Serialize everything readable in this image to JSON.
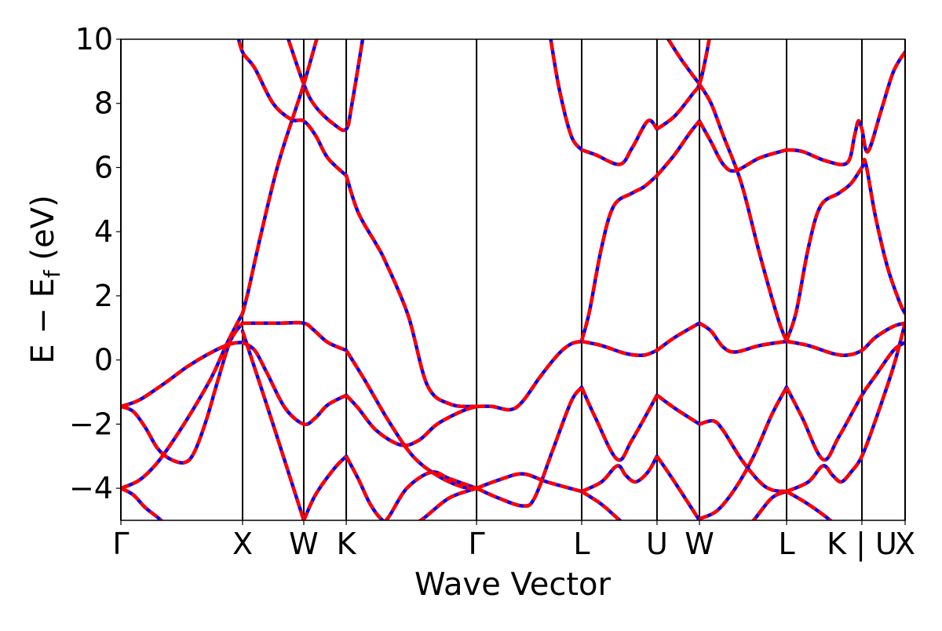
{
  "chart_data": {
    "type": "line",
    "title": "",
    "xlabel": "Wave Vector",
    "ylabel_main": "E − E",
    "ylabel_sub": "f",
    "ylabel_unit": " (eV)",
    "ylim": [
      -5,
      10
    ],
    "xlim": [
      0,
      6.445
    ],
    "yticks": [
      {
        "value": -4,
        "label": "−4"
      },
      {
        "value": -2,
        "label": "−2"
      },
      {
        "value": 0,
        "label": "0"
      },
      {
        "value": 2,
        "label": "2"
      },
      {
        "value": 4,
        "label": "4"
      },
      {
        "value": 6,
        "label": "6"
      },
      {
        "value": 8,
        "label": "8"
      },
      {
        "value": 10,
        "label": "10"
      }
    ],
    "kpoints": [
      {
        "value": 0,
        "label": "Γ"
      },
      {
        "value": 1.0,
        "label": "X"
      },
      {
        "value": 1.503,
        "label": "W"
      },
      {
        "value": 1.852,
        "label": "K"
      },
      {
        "value": 2.923,
        "label": "Γ"
      },
      {
        "value": 3.787,
        "label": "L"
      },
      {
        "value": 4.406,
        "label": "U"
      },
      {
        "value": 4.755,
        "label": "W"
      },
      {
        "value": 5.471,
        "label": "L"
      },
      {
        "value": 6.09,
        "label": "K | U"
      },
      {
        "value": 6.445,
        "label": "X"
      }
    ],
    "series": [
      {
        "name": "bands (solid)",
        "color": "#0000ff",
        "style": "solid"
      },
      {
        "name": "bands (dashed)",
        "color": "#ff0000",
        "style": "dashed"
      }
    ],
    "bands": [
      [
        [
          0,
          -4
        ],
        [
          0.1,
          -4.2
        ],
        [
          0.2,
          -4.6
        ],
        [
          0.33,
          -5.0
        ],
        [
          0.45,
          -5.5
        ]
      ],
      [
        [
          0,
          -4
        ],
        [
          0.15,
          -3.75
        ],
        [
          0.3,
          -3.2
        ],
        [
          0.45,
          -2.4
        ],
        [
          0.6,
          -1.5
        ],
        [
          0.75,
          -0.5
        ],
        [
          0.87,
          0.5
        ],
        [
          0.95,
          1.1
        ],
        [
          1.0,
          1.45
        ]
      ],
      [
        [
          0,
          -1.45
        ],
        [
          0.1,
          -1.6
        ],
        [
          0.2,
          -2.1
        ],
        [
          0.3,
          -2.75
        ],
        [
          0.4,
          -3.08
        ],
        [
          0.52,
          -3.2
        ],
        [
          0.6,
          -2.9
        ],
        [
          0.7,
          -1.9
        ],
        [
          0.8,
          -0.6
        ],
        [
          0.9,
          0.6
        ],
        [
          1.0,
          1.15
        ]
      ],
      [
        [
          0,
          -1.45
        ],
        [
          0.15,
          -1.25
        ],
        [
          0.35,
          -0.75
        ],
        [
          0.55,
          -0.2
        ],
        [
          0.75,
          0.25
        ],
        [
          0.9,
          0.5
        ],
        [
          1.0,
          0.55
        ]
      ],
      [
        [
          1,
          1.45
        ],
        [
          1.05,
          2.2
        ],
        [
          1.15,
          3.9
        ],
        [
          1.3,
          6.2
        ],
        [
          1.503,
          8.6
        ],
        [
          1.63,
          10.3
        ]
      ],
      [
        [
          1,
          1.15
        ],
        [
          1.3,
          1.15
        ],
        [
          1.5,
          1.15
        ],
        [
          1.58,
          0.95
        ],
        [
          1.7,
          0.55
        ],
        [
          1.852,
          0.3
        ]
      ],
      [
        [
          1,
          0.9
        ],
        [
          1.25,
          -2.0
        ],
        [
          1.503,
          -5.0
        ]
      ],
      [
        [
          1,
          0.55
        ],
        [
          1.1,
          0.3
        ],
        [
          1.2,
          -0.4
        ],
        [
          1.35,
          -1.5
        ],
        [
          1.503,
          -2.0
        ],
        [
          1.6,
          -1.8
        ],
        [
          1.7,
          -1.4
        ],
        [
          1.852,
          -1.1
        ]
      ],
      [
        [
          1.503,
          -5
        ],
        [
          1.6,
          -4.2
        ],
        [
          1.75,
          -3.4
        ],
        [
          1.852,
          -3.0
        ]
      ],
      [
        [
          0.95,
          10.3
        ],
        [
          1,
          9.6
        ],
        [
          1.1,
          9.1
        ],
        [
          1.25,
          8.0
        ],
        [
          1.4,
          7.5
        ],
        [
          1.503,
          7.45
        ],
        [
          1.6,
          7.0
        ],
        [
          1.7,
          6.3
        ],
        [
          1.852,
          5.75
        ]
      ],
      [
        [
          1.35,
          10.3
        ],
        [
          1.503,
          8.6
        ],
        [
          1.6,
          7.9
        ],
        [
          1.75,
          7.35
        ],
        [
          1.852,
          7.2
        ],
        [
          1.9,
          8.0
        ],
        [
          2.0,
          10.3
        ]
      ],
      [
        [
          1.852,
          5.75
        ],
        [
          1.95,
          4.6
        ],
        [
          2.1,
          3.6
        ],
        [
          2.17,
          3.1
        ],
        [
          2.36,
          1.4
        ],
        [
          2.52,
          -0.8
        ],
        [
          2.71,
          -1.38
        ],
        [
          2.923,
          -1.45
        ]
      ],
      [
        [
          1.852,
          0.3
        ],
        [
          2.0,
          -0.6
        ],
        [
          2.2,
          -1.9
        ],
        [
          2.4,
          -3.0
        ],
        [
          2.6,
          -3.6
        ],
        [
          2.8,
          -3.95
        ],
        [
          2.923,
          -4.0
        ]
      ],
      [
        [
          1.852,
          -1.1
        ],
        [
          1.95,
          -1.5
        ],
        [
          2.1,
          -2.2
        ],
        [
          2.3,
          -2.65
        ],
        [
          2.45,
          -2.5
        ],
        [
          2.6,
          -2.0
        ],
        [
          2.8,
          -1.6
        ],
        [
          2.923,
          -1.45
        ]
      ],
      [
        [
          1.852,
          -3.0
        ],
        [
          1.95,
          -3.7
        ],
        [
          2.05,
          -4.5
        ],
        [
          2.15,
          -5.0
        ],
        [
          2.3,
          -5.4
        ]
      ],
      [
        [
          2.1,
          -5.3
        ],
        [
          2.2,
          -4.9
        ],
        [
          2.35,
          -4.0
        ],
        [
          2.55,
          -3.5
        ],
        [
          2.7,
          -3.7
        ],
        [
          2.923,
          -4.0
        ]
      ],
      [
        [
          2.35,
          -5.3
        ],
        [
          2.5,
          -4.9
        ],
        [
          2.7,
          -4.3
        ],
        [
          2.923,
          -4.0
        ]
      ],
      [
        [
          2.923,
          -1.45
        ],
        [
          3.05,
          -1.45
        ],
        [
          3.2,
          -1.55
        ],
        [
          3.3,
          -1.3
        ],
        [
          3.45,
          -0.5
        ],
        [
          3.6,
          0.2
        ],
        [
          3.7,
          0.5
        ],
        [
          3.787,
          0.58
        ]
      ],
      [
        [
          2.923,
          -4.0
        ],
        [
          3.1,
          -3.75
        ],
        [
          3.3,
          -3.55
        ],
        [
          3.5,
          -3.8
        ],
        [
          3.787,
          -4.1
        ]
      ],
      [
        [
          2.923,
          -4.0
        ],
        [
          3.1,
          -4.3
        ],
        [
          3.3,
          -4.55
        ],
        [
          3.4,
          -4.3
        ],
        [
          3.55,
          -2.8
        ],
        [
          3.7,
          -1.3
        ],
        [
          3.787,
          -0.85
        ]
      ],
      [
        [
          3.52,
          10.3
        ],
        [
          3.6,
          8.5
        ],
        [
          3.7,
          7.0
        ],
        [
          3.787,
          6.55
        ]
      ],
      [
        [
          3.787,
          6.55
        ],
        [
          3.9,
          6.4
        ],
        [
          4.1,
          6.1
        ],
        [
          4.2,
          6.6
        ],
        [
          4.33,
          7.45
        ],
        [
          4.406,
          7.2
        ]
      ],
      [
        [
          3.787,
          0.6
        ],
        [
          3.85,
          1.5
        ],
        [
          3.95,
          3.5
        ],
        [
          4.05,
          4.8
        ],
        [
          4.2,
          5.2
        ],
        [
          4.3,
          5.4
        ],
        [
          4.406,
          5.75
        ]
      ],
      [
        [
          3.787,
          0.58
        ],
        [
          3.95,
          0.45
        ],
        [
          4.15,
          0.2
        ],
        [
          4.3,
          0.15
        ],
        [
          4.406,
          0.3
        ]
      ],
      [
        [
          3.787,
          -0.85
        ],
        [
          3.9,
          -1.8
        ],
        [
          4.08,
          -3.1
        ],
        [
          4.2,
          -2.5
        ],
        [
          4.406,
          -1.1
        ]
      ],
      [
        [
          3.787,
          -4.1
        ],
        [
          3.95,
          -3.8
        ],
        [
          4.08,
          -3.3
        ],
        [
          4.15,
          -3.6
        ],
        [
          4.23,
          -3.8
        ],
        [
          4.33,
          -3.5
        ],
        [
          4.406,
          -3.0
        ]
      ],
      [
        [
          3.787,
          -4.1
        ],
        [
          3.95,
          -4.5
        ],
        [
          4.1,
          -5.0
        ],
        [
          4.2,
          -5.3
        ]
      ],
      [
        [
          4.406,
          7.2
        ],
        [
          4.55,
          7.6
        ],
        [
          4.7,
          8.3
        ],
        [
          4.755,
          8.6
        ],
        [
          4.8,
          9.3
        ],
        [
          4.85,
          10.3
        ]
      ],
      [
        [
          4.406,
          5.75
        ],
        [
          4.55,
          6.4
        ],
        [
          4.68,
          7.1
        ],
        [
          4.755,
          7.45
        ]
      ],
      [
        [
          4.406,
          0.3
        ],
        [
          4.55,
          0.7
        ],
        [
          4.755,
          1.15
        ]
      ],
      [
        [
          4.406,
          -1.1
        ],
        [
          4.55,
          -1.5
        ],
        [
          4.755,
          -2.0
        ]
      ],
      [
        [
          4.406,
          -3.0
        ],
        [
          4.55,
          -3.8
        ],
        [
          4.755,
          -5.0
        ]
      ],
      [
        [
          4.45,
          10.3
        ],
        [
          4.6,
          9.4
        ],
        [
          4.755,
          8.6
        ]
      ],
      [
        [
          4.755,
          8.6
        ],
        [
          4.85,
          8.0
        ],
        [
          4.95,
          7.0
        ],
        [
          5.1,
          5.5
        ],
        [
          5.25,
          3.3
        ],
        [
          5.4,
          1.3
        ],
        [
          5.471,
          0.58
        ]
      ],
      [
        [
          4.755,
          7.45
        ],
        [
          4.85,
          6.8
        ],
        [
          4.95,
          6.1
        ],
        [
          5.05,
          5.9
        ],
        [
          5.25,
          6.3
        ],
        [
          5.471,
          6.55
        ]
      ],
      [
        [
          4.755,
          1.15
        ],
        [
          4.85,
          0.9
        ],
        [
          4.95,
          0.4
        ],
        [
          5.05,
          0.25
        ],
        [
          5.25,
          0.45
        ],
        [
          5.471,
          0.58
        ]
      ],
      [
        [
          4.755,
          -2.0
        ],
        [
          4.87,
          -1.9
        ],
        [
          4.95,
          -2.2
        ],
        [
          5.1,
          -3.1
        ],
        [
          5.25,
          -3.8
        ],
        [
          5.35,
          -4.05
        ],
        [
          5.471,
          -4.1
        ]
      ],
      [
        [
          4.755,
          -4.95
        ],
        [
          4.9,
          -4.7
        ],
        [
          5.05,
          -4.0
        ],
        [
          5.2,
          -3.0
        ],
        [
          5.35,
          -1.7
        ],
        [
          5.471,
          -0.85
        ]
      ],
      [
        [
          5.1,
          -5.4
        ],
        [
          5.2,
          -5.0
        ],
        [
          5.35,
          -4.3
        ],
        [
          5.471,
          -4.1
        ]
      ],
      [
        [
          5.471,
          6.55
        ],
        [
          5.6,
          6.5
        ],
        [
          5.8,
          6.2
        ],
        [
          5.97,
          6.15
        ],
        [
          6.03,
          7.0
        ],
        [
          6.06,
          7.45
        ],
        [
          6.09,
          7.2
        ],
        [
          6.14,
          6.5
        ],
        [
          6.25,
          7.8
        ],
        [
          6.35,
          9.0
        ],
        [
          6.445,
          9.6
        ]
      ],
      [
        [
          5.471,
          0.6
        ],
        [
          5.55,
          1.5
        ],
        [
          5.65,
          3.5
        ],
        [
          5.75,
          4.8
        ],
        [
          5.9,
          5.2
        ],
        [
          6.0,
          5.5
        ],
        [
          6.09,
          6.0
        ],
        [
          6.12,
          6.15
        ],
        [
          6.2,
          4.5
        ],
        [
          6.3,
          2.9
        ],
        [
          6.4,
          1.8
        ],
        [
          6.445,
          1.45
        ]
      ],
      [
        [
          5.471,
          0.58
        ],
        [
          5.65,
          0.45
        ],
        [
          5.85,
          0.2
        ],
        [
          5.97,
          0.15
        ],
        [
          6.09,
          0.3
        ],
        [
          6.2,
          0.7
        ],
        [
          6.35,
          1.05
        ],
        [
          6.445,
          1.15
        ]
      ],
      [
        [
          5.471,
          -0.85
        ],
        [
          5.6,
          -1.8
        ],
        [
          5.77,
          -3.1
        ],
        [
          5.9,
          -2.4
        ],
        [
          6.09,
          -1.1
        ],
        [
          6.2,
          -0.5
        ],
        [
          6.35,
          0.3
        ],
        [
          6.445,
          0.55
        ]
      ],
      [
        [
          5.471,
          -4.1
        ],
        [
          5.65,
          -3.8
        ],
        [
          5.77,
          -3.3
        ],
        [
          5.85,
          -3.6
        ],
        [
          5.92,
          -3.8
        ],
        [
          6.0,
          -3.5
        ],
        [
          6.09,
          -3.0
        ],
        [
          6.2,
          -1.9
        ],
        [
          6.35,
          -0.2
        ],
        [
          6.445,
          1.15
        ]
      ],
      [
        [
          5.471,
          -4.1
        ],
        [
          5.65,
          -4.5
        ],
        [
          5.83,
          -5.0
        ],
        [
          5.9,
          -5.3
        ]
      ]
    ]
  }
}
